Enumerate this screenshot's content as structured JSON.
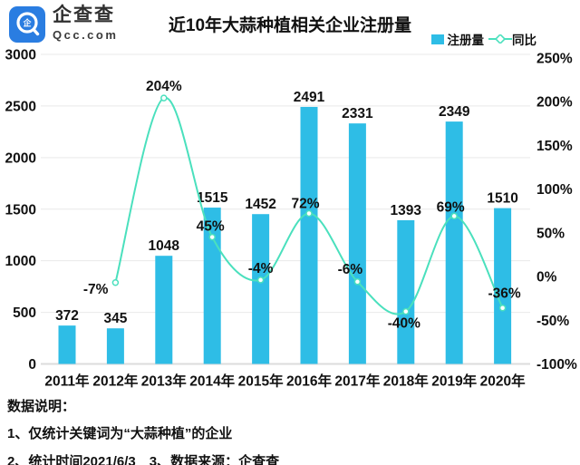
{
  "header": {
    "logo": {
      "brand": "企查查",
      "domain": "Qcc.com"
    },
    "title": "近10年大蒜种植相关企业注册量"
  },
  "legend": {
    "bar_label": "注册量",
    "line_label": "同比"
  },
  "chart_data": {
    "type": "bar",
    "title": "近10年大蒜种植相关企业注册量",
    "categories": [
      "2011年",
      "2012年",
      "2013年",
      "2014年",
      "2015年",
      "2016年",
      "2017年",
      "2018年",
      "2019年",
      "2020年"
    ],
    "series": [
      {
        "name": "注册量",
        "type": "bar",
        "axis": "left",
        "values": [
          372,
          345,
          1048,
          1515,
          1452,
          2491,
          2331,
          1393,
          2349,
          1510
        ]
      },
      {
        "name": "同比",
        "type": "line",
        "axis": "right",
        "unit": "%",
        "values": [
          null,
          -7,
          204,
          45,
          -4,
          72,
          -6,
          -40,
          69,
          -36
        ]
      }
    ],
    "left_axis": {
      "range": [
        0,
        3000
      ],
      "ticks": [
        0,
        500,
        1000,
        1500,
        2000,
        2500,
        3000
      ]
    },
    "right_axis": {
      "range": [
        -100,
        250
      ],
      "ticks_percent": [
        -100,
        -50,
        0,
        50,
        100,
        150,
        200,
        250
      ]
    },
    "grid": true,
    "legend_position": "top-right"
  },
  "colors": {
    "bar": "#2ebde6",
    "line": "#4ae0bd",
    "logo_blue": "#2a7de1",
    "text": "#111111",
    "grid": "#e9e9e9",
    "axis": "#dcdcdc"
  },
  "notes": {
    "heading": "数据说明：",
    "line1": "1、仅统计关键词为“大蒜种植”的企业",
    "line2": "2、统计时间2021/6/3　3、数据来源：企查查"
  }
}
